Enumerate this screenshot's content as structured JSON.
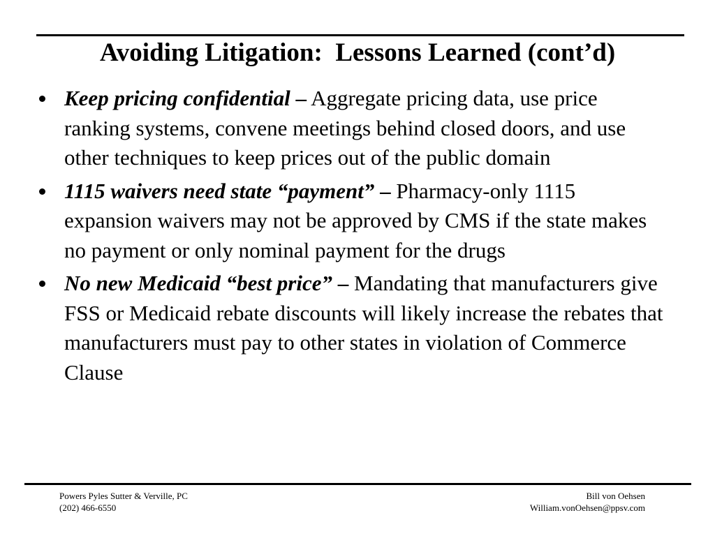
{
  "title": "Avoiding Litigation:  Lessons Learned (cont’d)",
  "bullets": [
    {
      "heading": "Keep pricing confidential",
      "dash": "–",
      "text": "Aggregate pricing data, use price ranking systems, convene meetings behind closed doors, and use other techniques to keep prices out of the public domain"
    },
    {
      "heading": "1115 waivers need state “payment”",
      "dash": "–",
      "text": "Pharmacy-only 1115 expansion waivers may not be approved by CMS if the state makes no payment or only nominal payment for the drugs"
    },
    {
      "heading": "No new Medicaid “best price”",
      "dash": "–",
      "text": "Mandating that manufacturers give FSS or Medicaid rebate discounts will likely increase the rebates that manufacturers must pay to other states in violation of Commerce Clause"
    }
  ],
  "footer": {
    "left": [
      "Powers Pyles Sutter & Verville, PC",
      "(202) 466-6550"
    ],
    "right": [
      "Bill von Oehsen",
      "William.vonOehsen@ppsv.com"
    ]
  }
}
